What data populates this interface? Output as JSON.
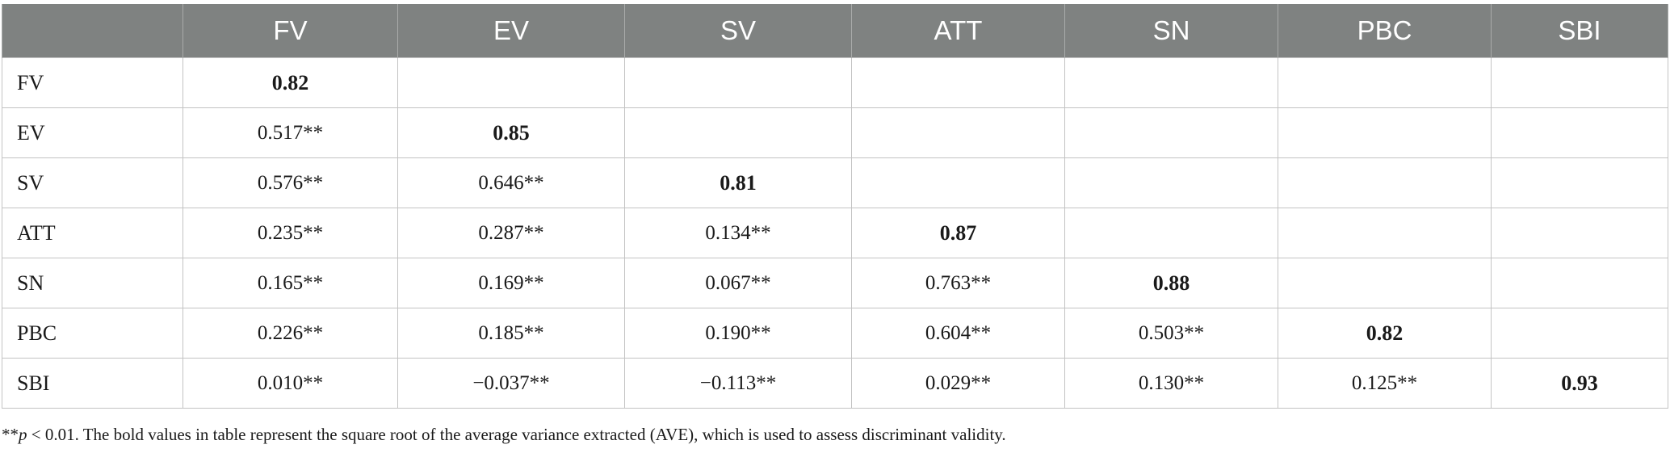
{
  "table": {
    "corner": "",
    "columns": [
      "FV",
      "EV",
      "SV",
      "ATT",
      "SN",
      "PBC",
      "SBI"
    ],
    "rows": [
      {
        "label": "FV",
        "cells": [
          "0.82",
          "",
          "",
          "",
          "",
          "",
          ""
        ]
      },
      {
        "label": "EV",
        "cells": [
          "0.517**",
          "0.85",
          "",
          "",
          "",
          "",
          ""
        ]
      },
      {
        "label": "SV",
        "cells": [
          "0.576**",
          "0.646**",
          "0.81",
          "",
          "",
          "",
          ""
        ]
      },
      {
        "label": "ATT",
        "cells": [
          "0.235**",
          "0.287**",
          "0.134**",
          "0.87",
          "",
          "",
          ""
        ]
      },
      {
        "label": "SN",
        "cells": [
          "0.165**",
          "0.169**",
          "0.067**",
          "0.763**",
          "0.88",
          "",
          ""
        ]
      },
      {
        "label": "PBC",
        "cells": [
          "0.226**",
          "0.185**",
          "0.190**",
          "0.604**",
          "0.503**",
          "0.82",
          ""
        ]
      },
      {
        "label": "SBI",
        "cells": [
          "0.010**",
          "−0.037**",
          "−0.113**",
          "0.029**",
          "0.130**",
          "0.125**",
          "0.93"
        ]
      }
    ]
  },
  "footnote": {
    "prefix": "**",
    "p_symbol": "p",
    "text": " < 0.01. The bold values in table represent the square root of the average variance extracted (AVE), which is used to assess discriminant validity."
  },
  "colors": {
    "header_bg": "#7f8281",
    "header_text": "#ffffff",
    "grid": "#c3c3c3"
  }
}
